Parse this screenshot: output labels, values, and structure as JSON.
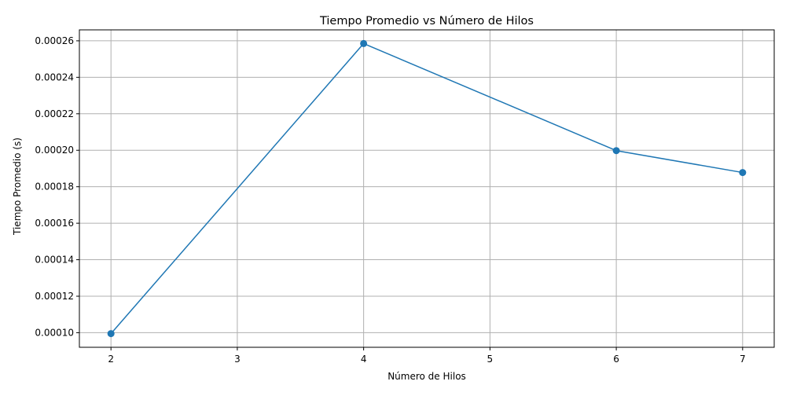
{
  "chart_data": {
    "type": "line",
    "title": "Tiempo Promedio vs Número de Hilos",
    "xlabel": "Número de Hilos",
    "ylabel": "Tiempo Promedio (s)",
    "x_ticks": [
      "2",
      "3",
      "4",
      "5",
      "6",
      "7"
    ],
    "y_ticks": [
      "0.00010",
      "0.00012",
      "0.00014",
      "0.00016",
      "0.00018",
      "0.00020",
      "0.00022",
      "0.00024",
      "0.00026"
    ],
    "xlim": [
      1.75,
      7.25
    ],
    "ylim": [
      9.2e-05,
      0.000266
    ],
    "grid": true,
    "color": "#1f77b4",
    "series": [
      {
        "x": [
          2,
          4,
          6,
          7
        ],
        "y": [
          9.95e-05,
          0.0002585,
          0.0001998,
          0.0001878
        ],
        "marker": "circle"
      }
    ]
  }
}
